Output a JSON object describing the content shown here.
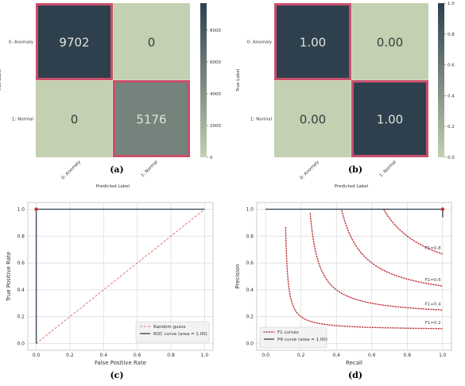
{
  "chart_data": [
    {
      "type": "heatmap",
      "panel": "(a)",
      "xlabel": "Predicted Label",
      "ylabel": "True Label",
      "x_categories": [
        "0: Anomaly",
        "1: Normal"
      ],
      "y_categories": [
        "0: Anomaly",
        "1: Normal"
      ],
      "values": [
        [
          9702,
          0
        ],
        [
          0,
          5176
        ]
      ],
      "cell_labels": [
        [
          "9702",
          "0"
        ],
        [
          "0",
          "5176"
        ]
      ],
      "colorbar_ticks": [
        "0",
        "2000",
        "4000",
        "6000",
        "8000"
      ],
      "colorbar_range": [
        0,
        9702
      ],
      "highlight_diagonal": true
    },
    {
      "type": "heatmap",
      "panel": "(b)",
      "xlabel": "Predicted Label",
      "ylabel": "True Label",
      "x_categories": [
        "0: Anomaly",
        "1: Normal"
      ],
      "y_categories": [
        "0: Anomaly",
        "1: Normal"
      ],
      "values": [
        [
          1.0,
          0.0
        ],
        [
          0.0,
          1.0
        ]
      ],
      "cell_labels": [
        [
          "1.00",
          "0.00"
        ],
        [
          "0.00",
          "1.00"
        ]
      ],
      "colorbar_ticks": [
        "0.0",
        "0.2",
        "0.4",
        "0.6",
        "0.8",
        "1.0"
      ],
      "colorbar_range": [
        0,
        1
      ],
      "highlight_diagonal": true
    },
    {
      "type": "line",
      "panel": "(c)",
      "xlabel": "False Positive Rate",
      "ylabel": "True Positive Rate",
      "xlim": [
        0,
        1
      ],
      "ylim": [
        0,
        1
      ],
      "xticks": [
        "0.0",
        "0.2",
        "0.4",
        "0.6",
        "0.8",
        "1.0"
      ],
      "yticks": [
        "0.0",
        "0.2",
        "0.4",
        "0.6",
        "0.8",
        "1.0"
      ],
      "grid": true,
      "legend_position": "bottom-right",
      "series": [
        {
          "name": "Random guess",
          "style": "dashed",
          "x": [
            0,
            1
          ],
          "y": [
            0,
            1
          ]
        },
        {
          "name": "ROC curve (area = 1.00)",
          "style": "solid",
          "x": [
            0,
            0,
            1
          ],
          "y": [
            0,
            1,
            1
          ]
        }
      ],
      "markers": [
        {
          "x": 0,
          "y": 1
        }
      ]
    },
    {
      "type": "line",
      "panel": "(d)",
      "xlabel": "Recall",
      "ylabel": "Precision",
      "xlim": [
        0,
        1
      ],
      "ylim": [
        0,
        1
      ],
      "xticks": [
        "0.0",
        "0.2",
        "0.4",
        "0.6",
        "0.8",
        "1.0"
      ],
      "yticks": [
        "0.0",
        "0.2",
        "0.4",
        "0.6",
        "0.8",
        "1.0"
      ],
      "grid": true,
      "legend_position": "bottom-left",
      "f1_values": [
        0.2,
        0.4,
        0.6,
        0.8
      ],
      "f1_labels": [
        "F1=0.2",
        "F1=0.4",
        "F1=0.6",
        "F1=0.8"
      ],
      "series": [
        {
          "name": "F1 curves",
          "style": "dotted"
        },
        {
          "name": "PR curve (area = 1.00)",
          "style": "solid",
          "x": [
            0,
            1,
            1
          ],
          "y": [
            1,
            1,
            0.94
          ]
        }
      ],
      "markers": [
        {
          "x": 1,
          "y": 1
        }
      ]
    }
  ],
  "captions": [
    "(a)",
    "(b)",
    "(c)",
    "(d)"
  ],
  "colors": {
    "heat_low": "#c3d0b1",
    "heat_high": "#2e3f4e",
    "diag_border": "#c74f6b",
    "grid": "#d8d8d8",
    "dashed": "#d9534f",
    "dotted": "#c2373f",
    "curve": "#3a4b5e",
    "marker": "#c9302c"
  }
}
